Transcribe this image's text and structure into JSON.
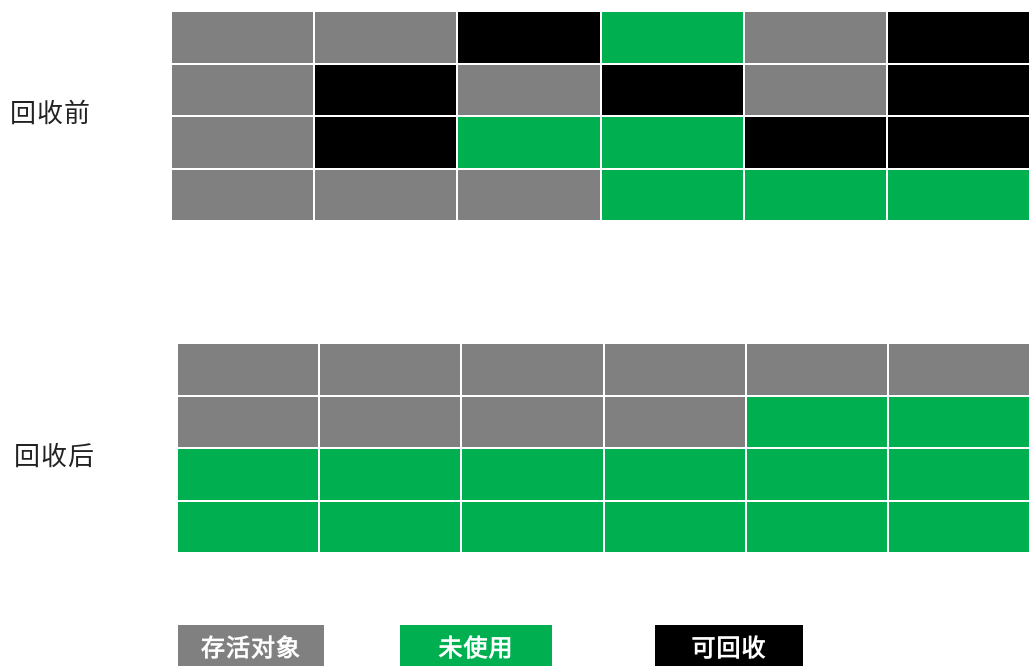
{
  "colors": {
    "alive": "#808080",
    "unused": "#00b050",
    "garbage": "#000000"
  },
  "before": {
    "label": "回收前",
    "rows": [
      [
        "alive",
        "alive",
        "garbage",
        "unused",
        "alive",
        "garbage"
      ],
      [
        "alive",
        "garbage",
        "alive",
        "garbage",
        "alive",
        "garbage"
      ],
      [
        "alive",
        "garbage",
        "unused",
        "unused",
        "garbage",
        "garbage"
      ],
      [
        "alive",
        "alive",
        "alive",
        "unused",
        "unused",
        "unused"
      ]
    ]
  },
  "after": {
    "label": "回收后",
    "rows": [
      [
        "alive",
        "alive",
        "alive",
        "alive",
        "alive",
        "alive"
      ],
      [
        "alive",
        "alive",
        "alive",
        "alive",
        "unused",
        "unused"
      ],
      [
        "unused",
        "unused",
        "unused",
        "unused",
        "unused",
        "unused"
      ],
      [
        "unused",
        "unused",
        "unused",
        "unused",
        "unused",
        "unused"
      ]
    ]
  },
  "legend": {
    "alive": "存活对象",
    "unused": "未使用",
    "garbage": "可回收"
  }
}
